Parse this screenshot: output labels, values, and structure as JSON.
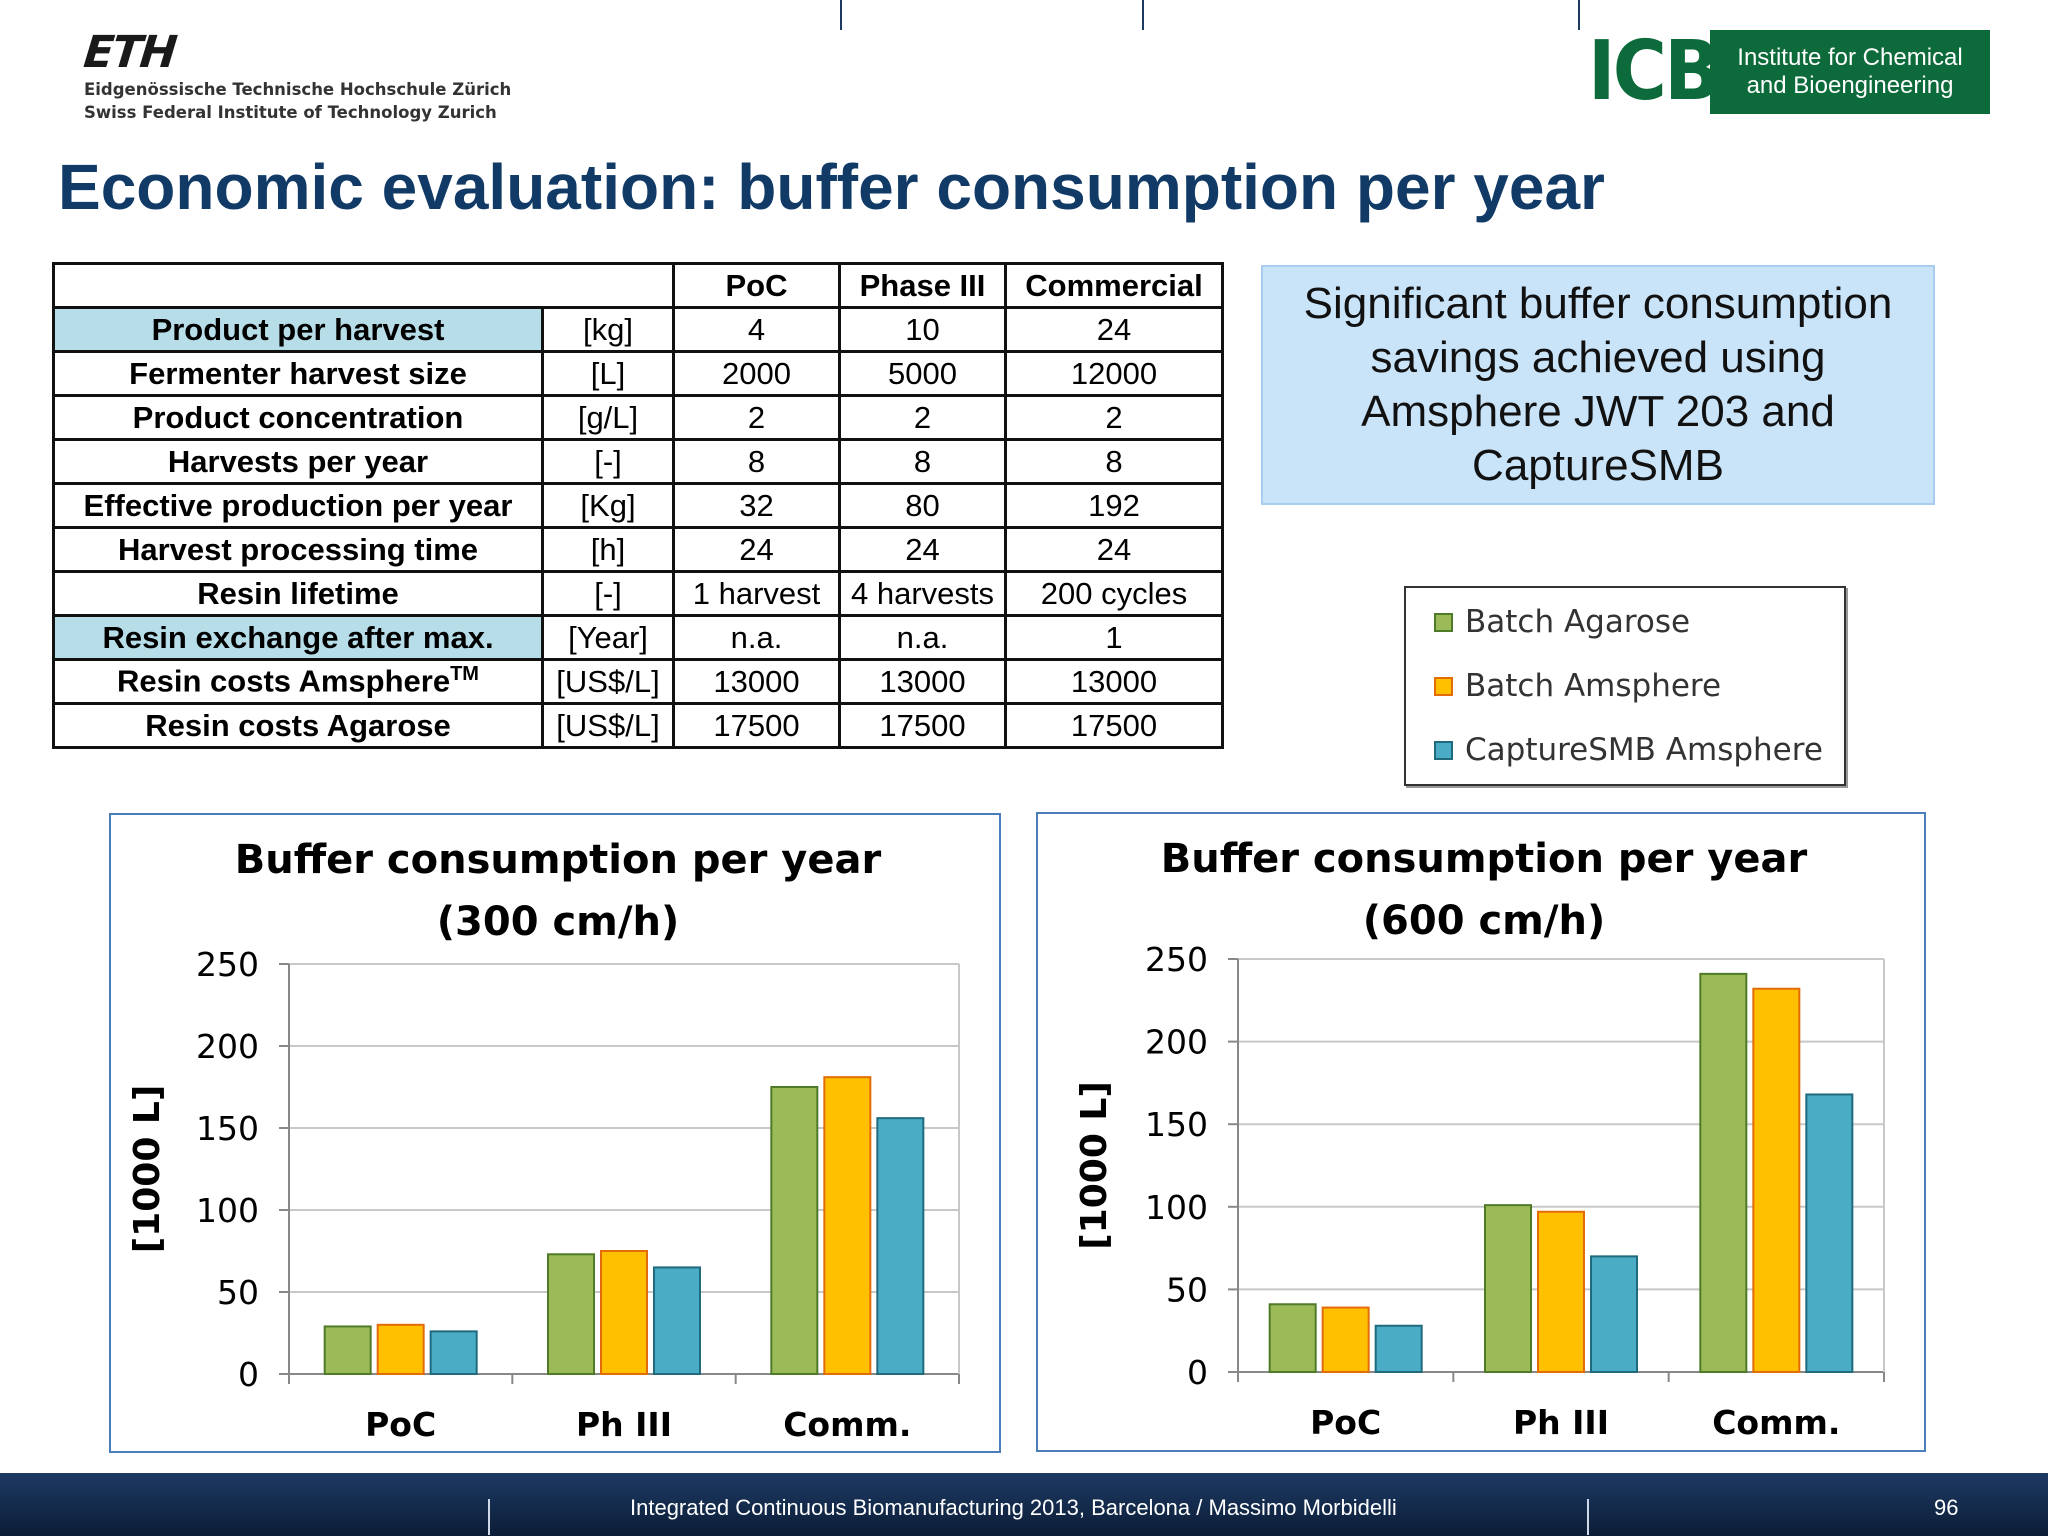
{
  "logos": {
    "eth_mark": "ETH",
    "eth_line1": "Eidgenössische Technische Hochschule Zürich",
    "eth_line2": "Swiss Federal Institute of Technology Zurich",
    "icb_mark": "ICB",
    "icb_line1": "Institute for Chemical",
    "icb_line2": "and Bioengineering"
  },
  "title": "Economic evaluation: buffer consumption per year",
  "table": {
    "headers": [
      "PoC",
      "Phase III",
      "Commercial"
    ],
    "rows": [
      {
        "label": "Product per harvest",
        "unit": "[kg]",
        "values": [
          "4",
          "10",
          "24"
        ]
      },
      {
        "label": "Fermenter harvest size",
        "unit": "[L]",
        "values": [
          "2000",
          "5000",
          "12000"
        ]
      },
      {
        "label": "Product concentration",
        "unit": "[g/L]",
        "values": [
          "2",
          "2",
          "2"
        ]
      },
      {
        "label": "Harvests per year",
        "unit": "[-]",
        "values": [
          "8",
          "8",
          "8"
        ]
      },
      {
        "label": "Effective production per year",
        "unit": "[Kg]",
        "values": [
          "32",
          "80",
          "192"
        ]
      },
      {
        "label": "Harvest processing time",
        "unit": "[h]",
        "values": [
          "24",
          "24",
          "24"
        ]
      },
      {
        "label": "Resin lifetime",
        "unit": "[-]",
        "values": [
          "1 harvest",
          "4 harvests",
          "200 cycles"
        ]
      },
      {
        "label": "Resin exchange after max.",
        "unit": "[Year]",
        "values": [
          "n.a.",
          "n.a.",
          "1"
        ]
      },
      {
        "label": "Resin costs Amsphere",
        "label_sup": "TM",
        "unit": "[US$/L]",
        "values": [
          "13000",
          "13000",
          "13000"
        ]
      },
      {
        "label": "Resin costs Agarose",
        "unit": "[US$/L]",
        "values": [
          "17500",
          "17500",
          "17500"
        ]
      }
    ]
  },
  "note": {
    "lines": [
      "Significant buffer consumption",
      "savings achieved using",
      "Amsphere JWT 203 and",
      "CaptureSMB"
    ]
  },
  "legend": {
    "items": [
      {
        "label": "Batch Agarose",
        "color": "#9bbb59",
        "border": "#4f7a28"
      },
      {
        "label": "Batch Amsphere",
        "color": "#ffc000",
        "border": "#e36c09"
      },
      {
        "label": "CaptureSMB Amsphere",
        "color": "#4bacc6",
        "border": "#1f6a7d"
      }
    ]
  },
  "chart_data": [
    {
      "type": "bar",
      "title": [
        "Buffer consumption per year",
        "(300 cm/h)"
      ],
      "ylabel": "[1000 L]",
      "categories": [
        "PoC",
        "Ph III",
        "Comm."
      ],
      "ylim": [
        0,
        250
      ],
      "yticks": [
        0,
        50,
        100,
        150,
        200,
        250
      ],
      "grid": true,
      "series": [
        {
          "name": "Batch Agarose",
          "values": [
            29,
            73,
            175
          ]
        },
        {
          "name": "Batch Amsphere",
          "values": [
            30,
            75,
            181
          ]
        },
        {
          "name": "CaptureSMB Amsphere",
          "values": [
            26,
            65,
            156
          ]
        }
      ]
    },
    {
      "type": "bar",
      "title": [
        "Buffer consumption per year",
        "(600 cm/h)"
      ],
      "ylabel": "[1000 L]",
      "categories": [
        "PoC",
        "Ph III",
        "Comm."
      ],
      "ylim": [
        0,
        250
      ],
      "yticks": [
        0,
        50,
        100,
        150,
        200,
        250
      ],
      "grid": true,
      "series": [
        {
          "name": "Batch Agarose",
          "values": [
            41,
            101,
            241
          ]
        },
        {
          "name": "Batch Amsphere",
          "values": [
            39,
            97,
            232
          ]
        },
        {
          "name": "CaptureSMB Amsphere",
          "values": [
            28,
            70,
            168
          ]
        }
      ]
    }
  ],
  "footer": {
    "text": "Integrated Continuous  Biomanufacturing  2013, Barcelona / Massimo Morbidelli",
    "page": "96"
  }
}
